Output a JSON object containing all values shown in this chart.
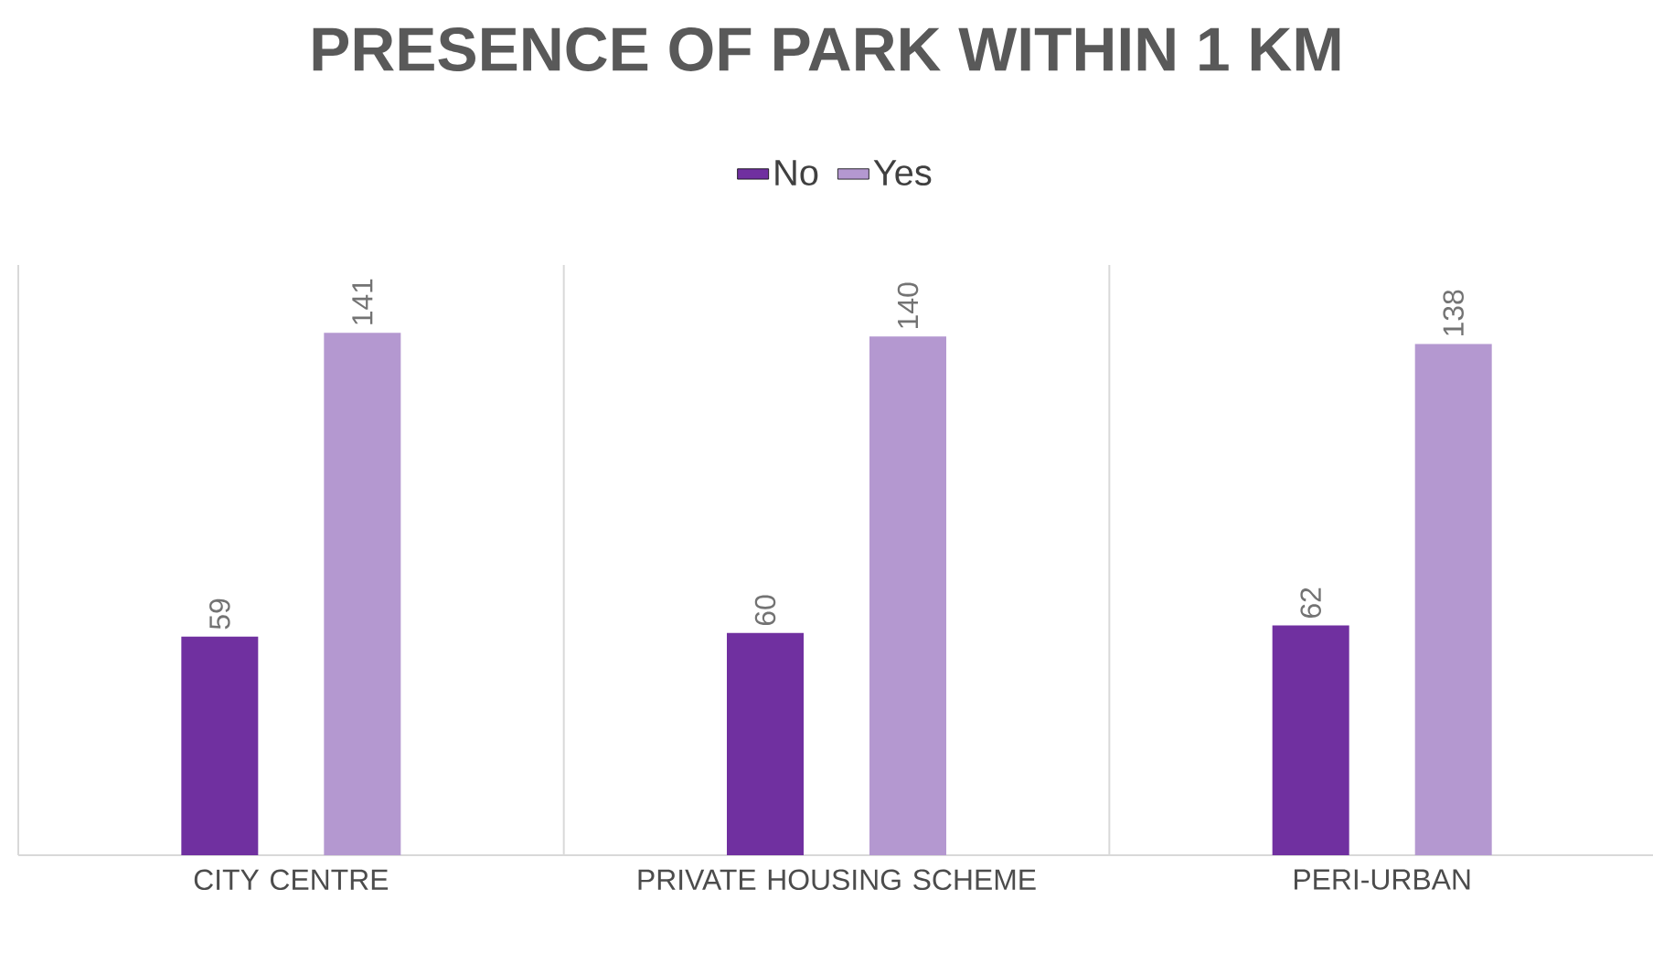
{
  "chart_data": {
    "type": "bar",
    "title": "PRESENCE OF PARK WITHIN 1 KM",
    "categories": [
      "CITY CENTRE",
      "PRIVATE HOUSING SCHEME",
      "PERI-URBAN"
    ],
    "series": [
      {
        "name": "No",
        "color": "#7030a0",
        "values": [
          59,
          60,
          62
        ]
      },
      {
        "name": "Yes",
        "color": "#b498d0",
        "values": [
          141,
          140,
          138
        ]
      }
    ],
    "data_labels": true,
    "grid": "x",
    "legend": "top"
  }
}
